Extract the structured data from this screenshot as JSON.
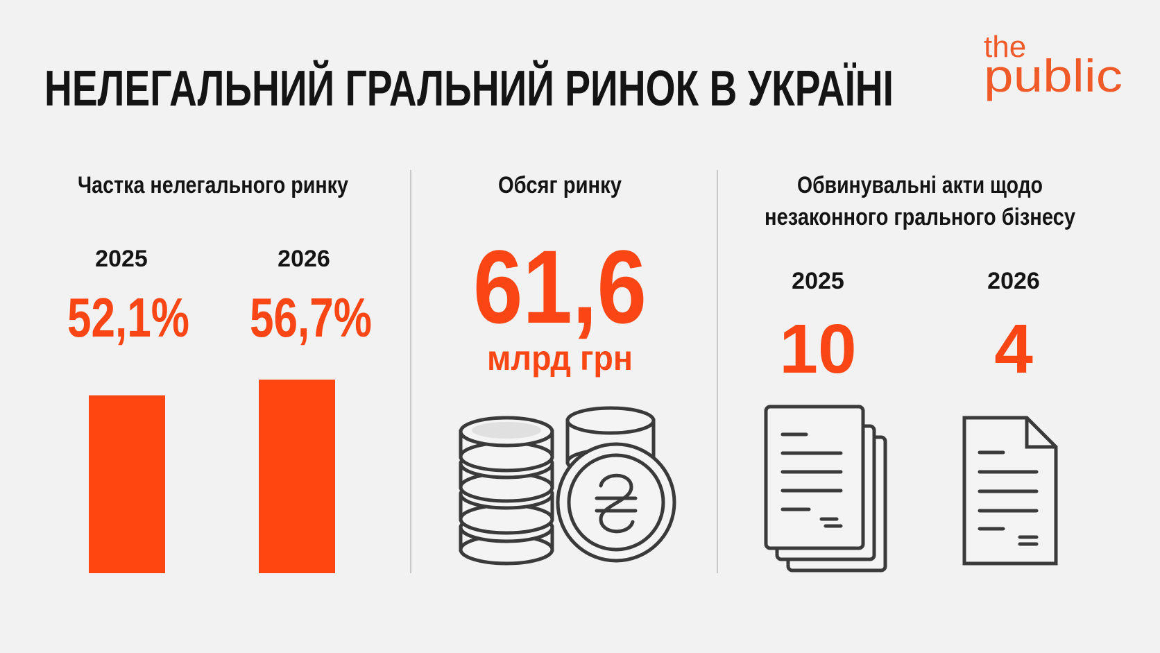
{
  "title": "НЕЛЕГАЛЬНИЙ ГРАЛЬНИЙ РИНОК В УКРАЇНІ",
  "logo": [
    "the",
    "public"
  ],
  "share": {
    "heading": "Частка нелегального ринку",
    "years": [
      "2025",
      "2026"
    ],
    "values": [
      52.1,
      56.7
    ],
    "value_labels": [
      "52,1%",
      "56,7%"
    ]
  },
  "volume": {
    "heading": "Обсяг ринку",
    "value": "61,6",
    "unit": "млрд грн"
  },
  "indictments": {
    "heading": [
      "Обвинувальні акти щодо",
      "незаконного грального бізнесу"
    ],
    "years": [
      "2025",
      "2026"
    ],
    "values": [
      10,
      4
    ]
  }
}
